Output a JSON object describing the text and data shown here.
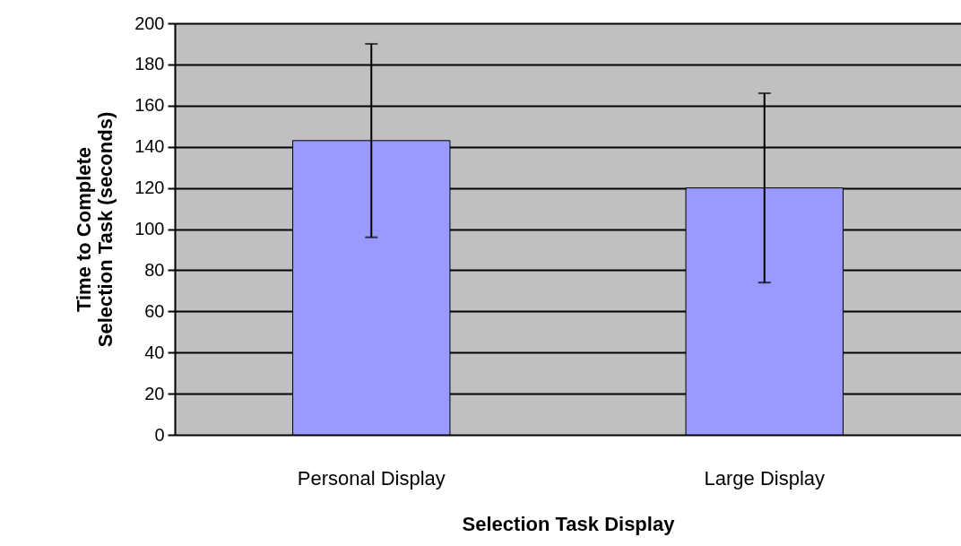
{
  "chart_data": {
    "type": "bar",
    "xlabel": "Selection Task Display",
    "ylabel": "Time to Complete Selection Task (seconds)",
    "categories": [
      "Personal Display",
      "Large Display"
    ],
    "values": [
      143,
      120
    ],
    "errors": [
      47,
      46
    ],
    "color": "#9999ff",
    "ylim": [
      0,
      200
    ],
    "yticks": [
      0,
      20,
      40,
      60,
      80,
      100,
      120,
      140,
      160,
      180,
      200
    ],
    "grid": true
  }
}
